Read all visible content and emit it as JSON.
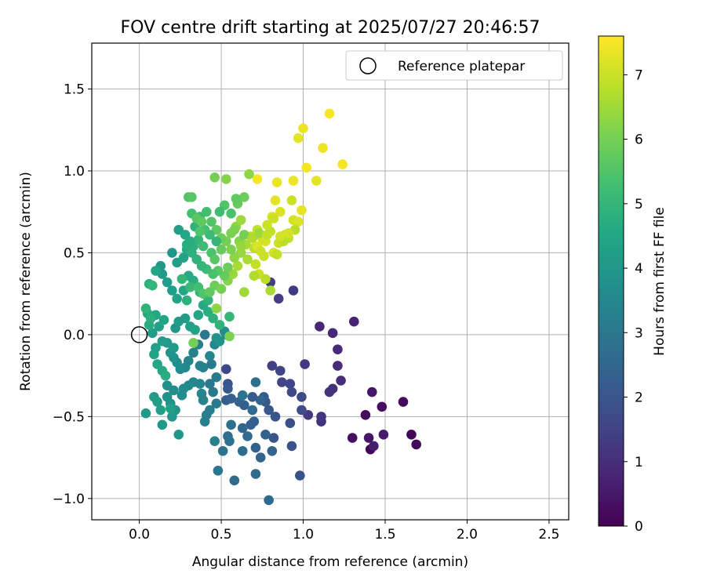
{
  "chart_data": {
    "type": "scatter",
    "title": "FOV centre drift starting at 2025/07/27 20:46:57",
    "xlabel": "Angular distance from reference (arcmin)",
    "ylabel": "Rotation from reference (arcmin)",
    "xlim": [
      -0.29,
      2.62
    ],
    "ylim": [
      -1.13,
      1.78
    ],
    "xticks": [
      0.0,
      0.5,
      1.0,
      1.5,
      2.0,
      2.5
    ],
    "xtick_labels": [
      "0.0",
      "0.5",
      "1.0",
      "1.5",
      "2.0",
      "2.5"
    ],
    "yticks": [
      -1.0,
      -0.5,
      0.0,
      0.5,
      1.0,
      1.5
    ],
    "ytick_labels": [
      "−1.0",
      "−0.5",
      "0.0",
      "0.5",
      "1.0",
      "1.5"
    ],
    "grid": true,
    "legend": {
      "position": "top-right",
      "label": "Reference platepar"
    },
    "reference_point": {
      "x": 0.0,
      "y": 0.0
    },
    "colorbar": {
      "label": "Hours from first FF file",
      "range": [
        0,
        7.6
      ],
      "colormap": "viridis",
      "ticks": [
        0,
        1,
        2,
        3,
        4,
        5,
        6,
        7
      ],
      "tick_labels": [
        "0",
        "1",
        "2",
        "3",
        "4",
        "5",
        "6",
        "7"
      ]
    },
    "points": [
      [
        1.41,
        -0.7,
        0.05
      ],
      [
        1.66,
        -0.61,
        0.1
      ],
      [
        1.69,
        -0.67,
        0.15
      ],
      [
        1.61,
        -0.41,
        0.2
      ],
      [
        1.38,
        -0.49,
        0.25
      ],
      [
        1.48,
        -0.44,
        0.3
      ],
      [
        1.3,
        -0.63,
        0.35
      ],
      [
        1.4,
        -0.63,
        0.4
      ],
      [
        1.42,
        -0.35,
        0.45
      ],
      [
        1.49,
        -0.61,
        0.55
      ],
      [
        1.43,
        -0.68,
        0.6
      ],
      [
        1.1,
        0.05,
        0.8
      ],
      [
        1.31,
        0.08,
        0.75
      ],
      [
        1.18,
        0.01,
        0.85
      ],
      [
        1.21,
        -0.09,
        0.9
      ],
      [
        1.21,
        -0.19,
        0.95
      ],
      [
        1.23,
        -0.28,
        1.0
      ],
      [
        1.18,
        -0.33,
        1.05
      ],
      [
        1.16,
        -0.35,
        1.1
      ],
      [
        1.11,
        -0.53,
        1.15
      ],
      [
        1.11,
        -0.5,
        1.2
      ],
      [
        1.03,
        -0.49,
        1.25
      ],
      [
        1.01,
        -0.18,
        1.3
      ],
      [
        0.94,
        0.27,
        1.3
      ],
      [
        0.85,
        0.22,
        1.35
      ],
      [
        0.8,
        0.32,
        1.4
      ],
      [
        0.81,
        -0.19,
        1.45
      ],
      [
        0.86,
        -0.22,
        1.5
      ],
      [
        0.87,
        -0.29,
        1.55
      ],
      [
        0.92,
        -0.3,
        1.6
      ],
      [
        0.93,
        -0.35,
        1.65
      ],
      [
        0.99,
        -0.38,
        1.7
      ],
      [
        0.99,
        -0.46,
        1.75
      ],
      [
        0.92,
        -0.54,
        1.8
      ],
      [
        0.93,
        -0.68,
        1.85
      ],
      [
        0.98,
        -0.86,
        1.9
      ],
      [
        0.82,
        -0.63,
        1.95
      ],
      [
        0.83,
        -0.5,
        2.0
      ],
      [
        0.79,
        -0.46,
        2.05
      ],
      [
        0.77,
        -0.41,
        2.1
      ],
      [
        0.76,
        -0.38,
        2.15
      ],
      [
        0.69,
        -0.38,
        2.2
      ],
      [
        0.64,
        -0.43,
        2.25
      ],
      [
        0.7,
        -0.53,
        2.3
      ],
      [
        0.68,
        -0.55,
        2.35
      ],
      [
        0.71,
        -0.69,
        2.4
      ],
      [
        0.74,
        -0.75,
        2.45
      ],
      [
        0.81,
        -0.71,
        2.5
      ],
      [
        0.79,
        -1.01,
        2.55
      ],
      [
        0.71,
        -0.85,
        2.6
      ],
      [
        0.58,
        -0.89,
        2.65
      ],
      [
        0.63,
        -0.71,
        2.7
      ],
      [
        0.54,
        -0.62,
        2.75
      ],
      [
        0.56,
        -0.55,
        2.8
      ],
      [
        0.55,
        -0.65,
        2.85
      ],
      [
        0.51,
        -0.71,
        2.9
      ],
      [
        0.48,
        -0.83,
        2.95
      ],
      [
        0.53,
        -0.21,
        1.6
      ],
      [
        0.54,
        -0.3,
        2.0
      ],
      [
        0.54,
        -0.33,
        2.1
      ],
      [
        0.53,
        -0.4,
        2.2
      ],
      [
        0.56,
        -0.39,
        2.3
      ],
      [
        0.61,
        -0.41,
        2.4
      ],
      [
        0.63,
        -0.57,
        2.5
      ],
      [
        0.66,
        -0.62,
        2.6
      ],
      [
        0.69,
        -0.46,
        2.7
      ],
      [
        0.71,
        -0.29,
        2.8
      ],
      [
        0.74,
        -0.4,
        2.5
      ],
      [
        0.77,
        -0.61,
        2.4
      ],
      [
        0.63,
        -0.37,
        2.9
      ],
      [
        0.43,
        -0.3,
        3.0
      ],
      [
        0.45,
        -0.35,
        3.05
      ],
      [
        0.47,
        -0.42,
        3.1
      ],
      [
        0.43,
        -0.46,
        3.15
      ],
      [
        0.41,
        -0.49,
        3.2
      ],
      [
        0.4,
        -0.53,
        3.25
      ],
      [
        0.46,
        -0.65,
        3.3
      ],
      [
        0.39,
        -0.4,
        3.35
      ],
      [
        0.38,
        -0.36,
        3.4
      ],
      [
        0.37,
        -0.3,
        3.45
      ],
      [
        0.33,
        -0.29,
        3.5
      ],
      [
        0.3,
        -0.31,
        3.55
      ],
      [
        0.27,
        -0.33,
        3.6
      ],
      [
        0.26,
        -0.37,
        3.65
      ],
      [
        0.21,
        -0.34,
        3.7
      ],
      [
        0.17,
        -0.31,
        3.75
      ],
      [
        0.17,
        -0.38,
        3.8
      ],
      [
        0.19,
        -0.42,
        3.85
      ],
      [
        0.22,
        -0.46,
        3.9
      ],
      [
        0.2,
        -0.5,
        3.95
      ],
      [
        0.24,
        -0.61,
        4.0
      ],
      [
        0.14,
        -0.55,
        4.05
      ],
      [
        0.04,
        -0.48,
        4.1
      ],
      [
        0.09,
        -0.38,
        4.15
      ],
      [
        0.11,
        -0.41,
        4.2
      ],
      [
        0.13,
        -0.46,
        4.25
      ],
      [
        0.19,
        -0.45,
        4.3
      ],
      [
        0.44,
        -0.18,
        3.0
      ],
      [
        0.47,
        -0.26,
        3.1
      ],
      [
        0.39,
        -0.2,
        3.2
      ],
      [
        0.37,
        -0.19,
        3.3
      ],
      [
        0.43,
        -0.13,
        3.4
      ],
      [
        0.46,
        -0.06,
        3.5
      ],
      [
        0.52,
        0.02,
        3.6
      ],
      [
        0.53,
        0.0,
        3.7
      ],
      [
        0.49,
        -0.04,
        3.8
      ],
      [
        0.47,
        -0.02,
        3.9
      ],
      [
        0.4,
        0.0,
        3.0
      ],
      [
        0.36,
        -0.06,
        3.2
      ],
      [
        0.33,
        -0.11,
        3.3
      ],
      [
        0.3,
        -0.16,
        3.4
      ],
      [
        0.28,
        -0.2,
        3.5
      ],
      [
        0.25,
        -0.21,
        3.6
      ],
      [
        0.23,
        -0.17,
        3.7
      ],
      [
        0.21,
        -0.14,
        3.8
      ],
      [
        0.19,
        -0.11,
        3.9
      ],
      [
        0.21,
        -0.08,
        4.0
      ],
      [
        0.17,
        -0.05,
        4.1
      ],
      [
        0.14,
        -0.04,
        4.2
      ],
      [
        0.1,
        -0.08,
        4.3
      ],
      [
        0.09,
        -0.12,
        4.4
      ],
      [
        0.11,
        -0.18,
        4.5
      ],
      [
        0.14,
        -0.22,
        4.6
      ],
      [
        0.16,
        -0.25,
        4.7
      ],
      [
        0.08,
        0.01,
        4.2
      ],
      [
        0.12,
        0.05,
        4.3
      ],
      [
        0.15,
        0.09,
        4.4
      ],
      [
        0.1,
        0.12,
        4.5
      ],
      [
        0.05,
        0.13,
        4.6
      ],
      [
        0.06,
        0.06,
        4.7
      ],
      [
        0.07,
        0.1,
        4.8
      ],
      [
        0.04,
        0.16,
        4.9
      ],
      [
        0.22,
        0.04,
        4.0
      ],
      [
        0.24,
        0.08,
        4.1
      ],
      [
        0.28,
        0.1,
        4.2
      ],
      [
        0.31,
        0.05,
        4.3
      ],
      [
        0.34,
        0.03,
        4.4
      ],
      [
        0.36,
        0.12,
        4.5
      ],
      [
        0.39,
        0.18,
        4.6
      ],
      [
        0.42,
        0.14,
        4.7
      ],
      [
        0.45,
        0.1,
        4.8
      ],
      [
        0.49,
        0.06,
        4.9
      ],
      [
        0.55,
        0.11,
        5.0
      ],
      [
        0.42,
        0.21,
        4.9
      ],
      [
        0.37,
        0.26,
        4.8
      ],
      [
        0.33,
        0.33,
        4.7
      ],
      [
        0.3,
        0.36,
        4.6
      ],
      [
        0.27,
        0.27,
        4.5
      ],
      [
        0.23,
        0.22,
        4.4
      ],
      [
        0.2,
        0.27,
        4.3
      ],
      [
        0.17,
        0.32,
        4.2
      ],
      [
        0.14,
        0.37,
        4.1
      ],
      [
        0.13,
        0.42,
        4.0
      ],
      [
        0.1,
        0.39,
        4.5
      ],
      [
        0.06,
        0.31,
        4.8
      ],
      [
        0.08,
        0.3,
        5.0
      ],
      [
        0.2,
        0.5,
        4.0
      ],
      [
        0.23,
        0.44,
        4.2
      ],
      [
        0.27,
        0.47,
        4.4
      ],
      [
        0.29,
        0.52,
        4.6
      ],
      [
        0.33,
        0.54,
        4.8
      ],
      [
        0.36,
        0.58,
        5.0
      ],
      [
        0.39,
        0.54,
        5.2
      ],
      [
        0.44,
        0.5,
        5.4
      ],
      [
        0.46,
        0.46,
        5.6
      ],
      [
        0.5,
        0.52,
        5.8
      ],
      [
        0.53,
        0.57,
        6.0
      ],
      [
        0.24,
        0.64,
        4.3
      ],
      [
        0.28,
        0.61,
        4.5
      ],
      [
        0.31,
        0.57,
        4.7
      ],
      [
        0.34,
        0.66,
        4.9
      ],
      [
        0.37,
        0.72,
        5.1
      ],
      [
        0.41,
        0.75,
        5.3
      ],
      [
        0.44,
        0.69,
        5.5
      ],
      [
        0.47,
        0.64,
        5.7
      ],
      [
        0.5,
        0.59,
        5.9
      ],
      [
        0.56,
        0.62,
        6.1
      ],
      [
        0.59,
        0.66,
        6.3
      ],
      [
        0.62,
        0.7,
        6.5
      ],
      [
        0.3,
        0.84,
        5.5
      ],
      [
        0.32,
        0.74,
        5.3
      ],
      [
        0.35,
        0.71,
        5.6
      ],
      [
        0.46,
        0.96,
        6.0
      ],
      [
        0.53,
        0.95,
        6.2
      ],
      [
        0.6,
        0.8,
        5.8
      ],
      [
        0.64,
        0.84,
        5.9
      ],
      [
        0.67,
        0.98,
        6.3
      ],
      [
        0.59,
        0.83,
        5.7
      ],
      [
        0.52,
        0.79,
        5.5
      ],
      [
        0.56,
        0.74,
        5.4
      ],
      [
        0.49,
        0.75,
        5.2
      ],
      [
        0.47,
        0.57,
        5.0
      ],
      [
        0.43,
        0.61,
        5.1
      ],
      [
        0.4,
        0.64,
        5.3
      ],
      [
        0.37,
        0.63,
        5.5
      ],
      [
        0.38,
        0.69,
        5.7
      ],
      [
        0.32,
        0.84,
        5.6
      ],
      [
        0.26,
        0.34,
        5.0
      ],
      [
        0.29,
        0.21,
        4.8
      ],
      [
        0.31,
        0.29,
        5.1
      ],
      [
        0.36,
        0.29,
        5.3
      ],
      [
        0.39,
        0.25,
        5.5
      ],
      [
        0.43,
        0.26,
        5.7
      ],
      [
        0.46,
        0.3,
        5.9
      ],
      [
        0.5,
        0.28,
        6.0
      ],
      [
        0.54,
        0.33,
        6.2
      ],
      [
        0.57,
        0.37,
        6.4
      ],
      [
        0.6,
        0.42,
        6.6
      ],
      [
        0.64,
        0.26,
        6.5
      ],
      [
        0.58,
        0.47,
        6.3
      ],
      [
        0.56,
        0.52,
        6.1
      ],
      [
        0.54,
        0.41,
        5.9
      ],
      [
        0.52,
        0.36,
        5.8
      ],
      [
        0.48,
        0.39,
        5.6
      ],
      [
        0.45,
        0.37,
        5.4
      ],
      [
        0.41,
        0.4,
        5.2
      ],
      [
        0.38,
        0.42,
        5.0
      ],
      [
        0.35,
        0.46,
        4.9
      ],
      [
        0.32,
        0.5,
        4.8
      ],
      [
        0.29,
        0.55,
        4.7
      ],
      [
        0.33,
        -0.05,
        6.0
      ],
      [
        0.47,
        0.16,
        6.3
      ],
      [
        0.55,
        -0.01,
        6.1
      ],
      [
        0.62,
        0.5,
        6.4
      ],
      [
        0.65,
        0.55,
        6.6
      ],
      [
        0.68,
        0.6,
        6.8
      ],
      [
        0.72,
        0.64,
        6.9
      ],
      [
        0.75,
        0.59,
        7.0
      ],
      [
        0.7,
        0.53,
        6.8
      ],
      [
        0.66,
        0.46,
        6.6
      ],
      [
        0.71,
        0.43,
        6.9
      ],
      [
        0.73,
        0.37,
        7.0
      ],
      [
        0.7,
        0.36,
        6.7
      ],
      [
        0.77,
        0.34,
        6.8
      ],
      [
        0.8,
        0.27,
        6.6
      ],
      [
        0.82,
        0.5,
        7.1
      ],
      [
        0.85,
        0.56,
        7.0
      ],
      [
        0.8,
        0.63,
        6.9
      ],
      [
        0.78,
        0.67,
        7.0
      ],
      [
        0.81,
        0.72,
        7.2
      ],
      [
        0.83,
        0.82,
        7.3
      ],
      [
        0.86,
        0.75,
        7.2
      ],
      [
        0.89,
        0.61,
        7.0
      ],
      [
        0.91,
        0.59,
        6.9
      ],
      [
        0.94,
        0.7,
        7.1
      ],
      [
        0.97,
        0.69,
        7.2
      ],
      [
        0.99,
        0.76,
        7.3
      ],
      [
        0.95,
        0.64,
        6.8
      ],
      [
        0.93,
        0.82,
        7.0
      ],
      [
        0.94,
        0.94,
        7.4
      ],
      [
        1.02,
        1.02,
        7.5
      ],
      [
        1.08,
        0.94,
        7.3
      ],
      [
        1.12,
        1.14,
        7.4
      ],
      [
        1.16,
        1.35,
        7.5
      ],
      [
        1.24,
        1.04,
        7.5
      ],
      [
        1.0,
        1.26,
        7.4
      ],
      [
        0.97,
        1.2,
        7.3
      ],
      [
        0.84,
        0.93,
        7.4
      ],
      [
        0.72,
        0.95,
        7.5
      ],
      [
        0.72,
        0.54,
        7.2
      ],
      [
        0.77,
        0.57,
        7.1
      ],
      [
        0.84,
        0.49,
        6.9
      ],
      [
        0.74,
        0.51,
        7.0
      ],
      [
        0.88,
        0.57,
        6.8
      ],
      [
        0.91,
        0.62,
        7.1
      ],
      [
        0.61,
        0.57,
        6.2
      ],
      [
        0.64,
        0.61,
        6.0
      ],
      [
        0.58,
        0.64,
        6.1
      ],
      [
        0.62,
        0.54,
        6.4
      ],
      [
        0.69,
        0.59,
        6.7
      ],
      [
        0.73,
        0.62,
        6.5
      ],
      [
        0.78,
        0.61,
        6.9
      ],
      [
        0.76,
        0.48,
        7.0
      ],
      [
        0.82,
        0.71,
        7.0
      ],
      [
        0.86,
        0.6,
        7.1
      ]
    ]
  }
}
